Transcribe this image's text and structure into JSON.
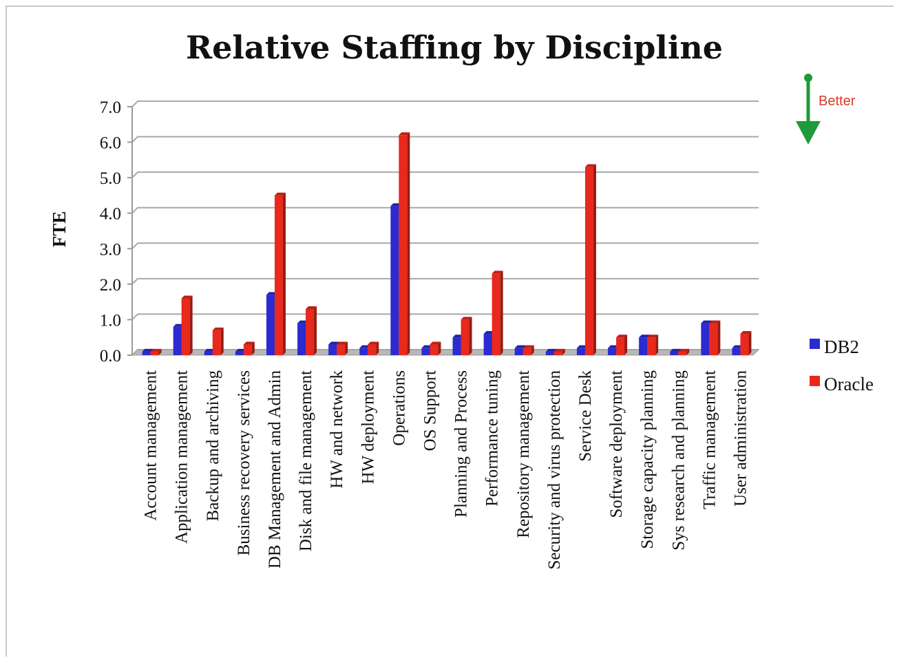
{
  "chart_data": {
    "type": "bar",
    "title": "Relative Staffing by Discipline",
    "ylabel": "FTE",
    "xlabel": "",
    "ylim": [
      0,
      7
    ],
    "yticks": [
      "0.0",
      "1.0",
      "2.0",
      "3.0",
      "4.0",
      "5.0",
      "6.0",
      "7.0"
    ],
    "grid": true,
    "legend_position": "right",
    "categories": [
      "Account management",
      "Application management",
      "Backup and archiving",
      "Business recovery services",
      "DB Management and Admin",
      "Disk and file management",
      "HW and network",
      "HW deployment",
      "Operations",
      "OS Support",
      "Planning and Process",
      "Performance tuning",
      "Repository management",
      "Security and virus protection",
      "Service Desk",
      "Software deployment",
      "Storage capacity planning",
      "Sys research and planning",
      "Traffic management",
      "User administration"
    ],
    "series": [
      {
        "name": "DB2",
        "color": "#2b2bd0",
        "values": [
          0.1,
          0.8,
          0.1,
          0.1,
          1.7,
          0.9,
          0.3,
          0.2,
          4.2,
          0.2,
          0.5,
          0.6,
          0.2,
          0.1,
          0.2,
          0.2,
          0.5,
          0.1,
          0.9,
          0.2
        ]
      },
      {
        "name": "Oracle",
        "color": "#e8291c",
        "values": [
          0.1,
          1.6,
          0.7,
          0.3,
          4.5,
          1.3,
          0.3,
          0.3,
          6.2,
          0.3,
          1.0,
          2.3,
          0.2,
          0.1,
          5.3,
          0.5,
          0.5,
          0.1,
          0.9,
          0.6
        ]
      }
    ],
    "annotation": {
      "text": "Better",
      "arrow_direction": "down",
      "arrow_color": "#1e9a3a",
      "text_color": "#d83a2a"
    }
  }
}
